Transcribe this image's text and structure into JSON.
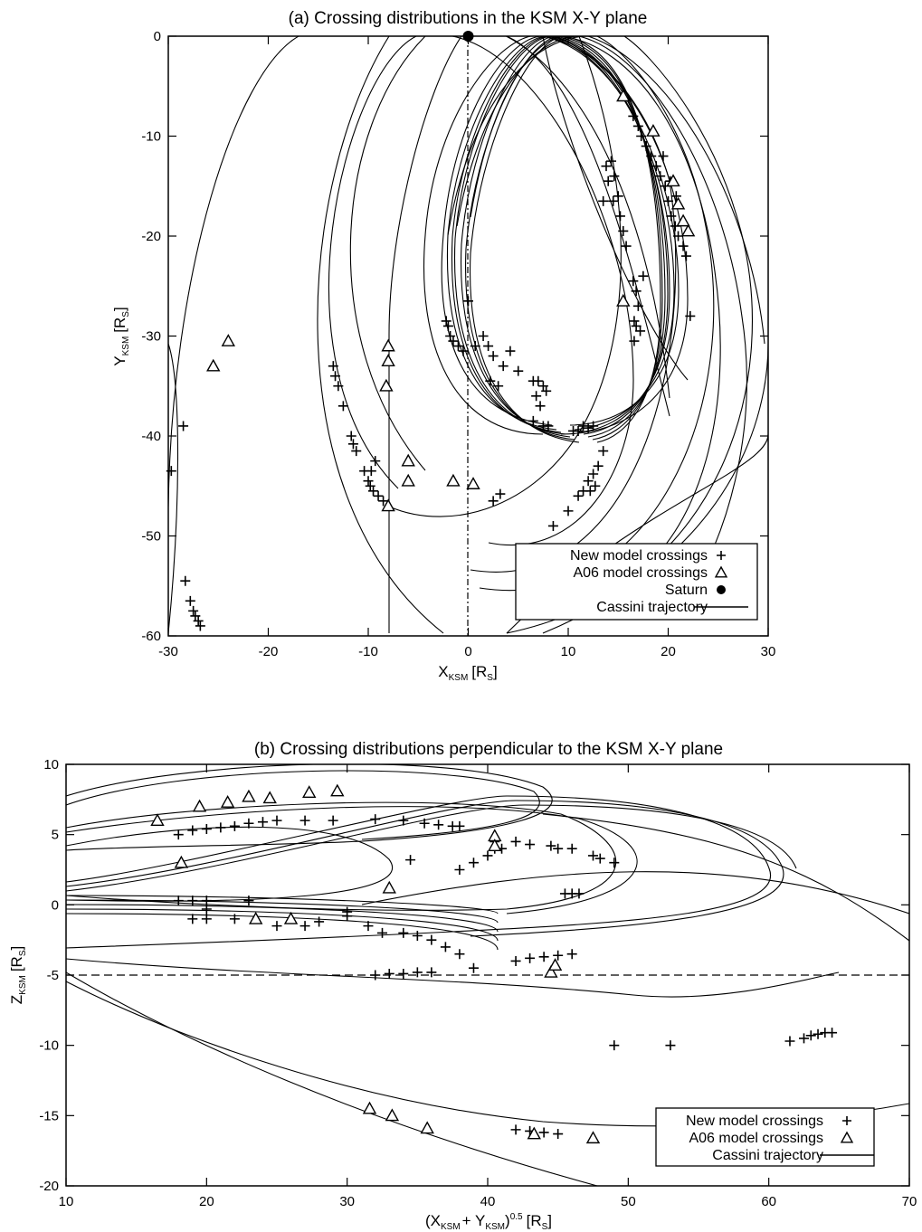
{
  "chart_data": [
    {
      "type": "scatter",
      "title": "(a) Crossing distributions in the KSM X-Y plane",
      "xlabel": {
        "main": "X",
        "sub": "KSM",
        "unit": "[R",
        "unit_sub": "S",
        "unit_end": "]"
      },
      "ylabel": {
        "main": "Y",
        "sub": "KSM",
        "unit": "[R",
        "unit_sub": "S",
        "unit_end": "]"
      },
      "xlim": [
        -30,
        30
      ],
      "ylim": [
        -60,
        0
      ],
      "xticks": [
        -30,
        -20,
        -10,
        0,
        10,
        20,
        30
      ],
      "yticks": [
        0,
        -10,
        -20,
        -30,
        -40,
        -50,
        -60
      ],
      "legend_position": "bottom-right",
      "legend": [
        {
          "label": "New model crossings",
          "marker": "plus"
        },
        {
          "label": "A06 model crossings",
          "marker": "triangle"
        },
        {
          "label": "Saturn",
          "marker": "dot"
        },
        {
          "label": "Cassini trajectory",
          "marker": "line"
        }
      ],
      "series": [
        {
          "name": "New model crossings",
          "marker": "plus",
          "points": [
            [
              -28.5,
              -39
            ],
            [
              -29.7,
              -43.5
            ],
            [
              -28.3,
              -54.5
            ],
            [
              -27.8,
              -56.5
            ],
            [
              -27.5,
              -57.5
            ],
            [
              -27.3,
              -58
            ],
            [
              -27,
              -58.5
            ],
            [
              -26.8,
              -59
            ],
            [
              -13.5,
              -33
            ],
            [
              -13.3,
              -34
            ],
            [
              -13,
              -35
            ],
            [
              -12.5,
              -37
            ],
            [
              -11.7,
              -40
            ],
            [
              -11.5,
              -40.8
            ],
            [
              -11.2,
              -41.5
            ],
            [
              -10.4,
              -43.5
            ],
            [
              -10,
              -44.5
            ],
            [
              -9.8,
              -45
            ],
            [
              -9.5,
              -45.5
            ],
            [
              -9,
              -46
            ],
            [
              -8.5,
              -46.5
            ],
            [
              -9.7,
              -43.5
            ],
            [
              -9.3,
              -42.5
            ],
            [
              -2.2,
              -28.5
            ],
            [
              -2,
              -29
            ],
            [
              -1.8,
              -30
            ],
            [
              -1.5,
              -30.5
            ],
            [
              -1,
              -31
            ],
            [
              -0.5,
              -31.5
            ],
            [
              0,
              -26.5
            ],
            [
              0.7,
              -31
            ],
            [
              1.5,
              -30
            ],
            [
              2,
              -31
            ],
            [
              2.5,
              -32
            ],
            [
              2.2,
              -34.5
            ],
            [
              3.5,
              -33
            ],
            [
              3,
              -35
            ],
            [
              4.2,
              -31.5
            ],
            [
              5,
              -33.5
            ],
            [
              6.5,
              -34.5
            ],
            [
              7,
              -34.5
            ],
            [
              7.5,
              -35
            ],
            [
              6.8,
              -36
            ],
            [
              7.8,
              -35.5
            ],
            [
              7.2,
              -37
            ],
            [
              6.5,
              -38.5
            ],
            [
              7.5,
              -39
            ],
            [
              8,
              -39
            ],
            [
              10.5,
              -39.5
            ],
            [
              11,
              -39.5
            ],
            [
              11.5,
              -39
            ],
            [
              12,
              -39.2
            ],
            [
              12.5,
              -39
            ],
            [
              2.5,
              -46.5
            ],
            [
              3.2,
              -45.8
            ],
            [
              8.5,
              -49
            ],
            [
              10,
              -47.5
            ],
            [
              11,
              -46
            ],
            [
              11.5,
              -45.5
            ],
            [
              12,
              -44.5
            ],
            [
              12.5,
              -43.8
            ],
            [
              13,
              -43
            ],
            [
              13.5,
              -41.5
            ],
            [
              12.2,
              -45.5
            ],
            [
              12.7,
              -45
            ],
            [
              13.5,
              -16.5
            ],
            [
              13.8,
              -13
            ],
            [
              14,
              -14.5
            ],
            [
              14.3,
              -12.5
            ],
            [
              14.6,
              -14
            ],
            [
              15,
              -16
            ],
            [
              15.2,
              -18
            ],
            [
              15.5,
              -19.5
            ],
            [
              15.8,
              -21
            ],
            [
              14.5,
              -16.5
            ],
            [
              16.5,
              -24.5
            ],
            [
              16.8,
              -25.5
            ],
            [
              17,
              -27
            ],
            [
              16.6,
              -28.5
            ],
            [
              16.8,
              -29
            ],
            [
              17.2,
              -29.5
            ],
            [
              16.6,
              -30.5
            ],
            [
              17.5,
              -24
            ],
            [
              16.5,
              -8
            ],
            [
              17,
              -9
            ],
            [
              17.3,
              -10
            ],
            [
              17.8,
              -11
            ],
            [
              18.3,
              -12
            ],
            [
              18.8,
              -13
            ],
            [
              19.2,
              -14
            ],
            [
              19.7,
              -15
            ],
            [
              20,
              -16.5
            ],
            [
              20.3,
              -18
            ],
            [
              20.7,
              -19
            ],
            [
              21,
              -20
            ],
            [
              21.5,
              -21
            ],
            [
              21.8,
              -22
            ],
            [
              22.2,
              -28
            ],
            [
              19.5,
              -12
            ],
            [
              20.2,
              -14.5
            ],
            [
              20.8,
              -16
            ]
          ]
        },
        {
          "name": "A06 model crossings",
          "marker": "triangle",
          "points": [
            [
              -25.5,
              -33
            ],
            [
              -24,
              -30.5
            ],
            [
              -8,
              -31
            ],
            [
              -8,
              -32.5
            ],
            [
              -8.2,
              -35
            ],
            [
              -8,
              -47
            ],
            [
              -6,
              -42.5
            ],
            [
              -6,
              -44.5
            ],
            [
              -1.5,
              -44.5
            ],
            [
              0.5,
              -44.8
            ],
            [
              15.5,
              -6
            ],
            [
              18.5,
              -9.5
            ],
            [
              20.5,
              -14.5
            ],
            [
              21,
              -16.8
            ],
            [
              21.5,
              -18.5
            ],
            [
              22,
              -19.5
            ],
            [
              15.5,
              -26.5
            ]
          ]
        },
        {
          "name": "Saturn",
          "marker": "dot",
          "points": [
            [
              0,
              0
            ]
          ]
        }
      ]
    },
    {
      "type": "scatter",
      "title": "(b) Crossing distributions perpendicular to the KSM X-Y plane",
      "xlabel": {
        "open": "(X",
        "xsub": "KSM",
        "plus": "+ Y",
        "ysub": "KSM",
        "close": ")",
        "exp": "0.5",
        "unit": "[R",
        "unit_sub": "S",
        "unit_end": "]"
      },
      "ylabel": {
        "main": "Z",
        "sub": "KSM",
        "unit": "[R",
        "unit_sub": "S",
        "unit_end": "]"
      },
      "xlim": [
        10,
        70
      ],
      "ylim": [
        -20,
        10
      ],
      "xticks": [
        10,
        20,
        30,
        40,
        50,
        60,
        70
      ],
      "yticks": [
        10,
        5,
        0,
        -5,
        -10,
        -15,
        -20
      ],
      "legend_position": "bottom-right",
      "legend": [
        {
          "label": "New model crossings",
          "marker": "plus"
        },
        {
          "label": "A06 model crossings",
          "marker": "triangle"
        },
        {
          "label": "Cassini trajectory",
          "marker": "line"
        }
      ],
      "series": [
        {
          "name": "New model crossings",
          "marker": "plus",
          "points": [
            [
              18,
              5
            ],
            [
              19,
              5.3
            ],
            [
              20,
              5.4
            ],
            [
              21,
              5.5
            ],
            [
              22,
              5.6
            ],
            [
              23,
              5.8
            ],
            [
              24,
              5.9
            ],
            [
              25,
              6
            ],
            [
              27,
              6
            ],
            [
              29,
              6
            ],
            [
              32,
              6.1
            ],
            [
              34,
              6
            ],
            [
              35.5,
              5.8
            ],
            [
              36.5,
              5.7
            ],
            [
              37.5,
              5.6
            ],
            [
              38,
              5.6
            ],
            [
              40.5,
              4
            ],
            [
              40.5,
              4.5
            ],
            [
              41,
              4
            ],
            [
              42,
              4.5
            ],
            [
              43,
              4.3
            ],
            [
              44.5,
              4.2
            ],
            [
              45,
              4
            ],
            [
              46,
              4
            ],
            [
              47.5,
              3.5
            ],
            [
              48,
              3.3
            ],
            [
              49,
              3
            ],
            [
              18,
              0.3
            ],
            [
              19,
              0.3
            ],
            [
              20,
              0.3
            ],
            [
              23,
              0.3
            ],
            [
              30,
              -0.5
            ],
            [
              31.5,
              -1.5
            ],
            [
              32.5,
              -2
            ],
            [
              34,
              -2
            ],
            [
              35,
              -2.2
            ],
            [
              36,
              -2.5
            ],
            [
              37,
              -3
            ],
            [
              38,
              -3.5
            ],
            [
              34.5,
              3.2
            ],
            [
              38,
              2.5
            ],
            [
              39,
              3
            ],
            [
              40,
              3.5
            ],
            [
              45.5,
              0.8
            ],
            [
              46,
              0.8
            ],
            [
              46.5,
              0.8
            ],
            [
              44,
              -3.7
            ],
            [
              45,
              -3.6
            ],
            [
              46,
              -3.5
            ],
            [
              43,
              -3.8
            ],
            [
              42,
              -4
            ],
            [
              39,
              -4.5
            ],
            [
              36,
              -4.8
            ],
            [
              35,
              -4.8
            ],
            [
              34,
              -4.9
            ],
            [
              33,
              -4.9
            ],
            [
              32,
              -5
            ],
            [
              30,
              -0.8
            ],
            [
              28,
              -1.2
            ],
            [
              27,
              -1.5
            ],
            [
              25,
              -1.5
            ],
            [
              22,
              -1
            ],
            [
              20,
              -1
            ],
            [
              19,
              -1
            ],
            [
              20,
              -0.3
            ],
            [
              49,
              -10
            ],
            [
              53,
              -10
            ],
            [
              61.5,
              -9.7
            ],
            [
              62.5,
              -9.5
            ],
            [
              63,
              -9.3
            ],
            [
              63.5,
              -9.2
            ],
            [
              64,
              -9.1
            ],
            [
              64.5,
              -9.1
            ],
            [
              42,
              -16
            ],
            [
              43,
              -16.1
            ],
            [
              44,
              -16.2
            ],
            [
              45,
              -16.3
            ]
          ]
        },
        {
          "name": "A06 model crossings",
          "marker": "triangle",
          "points": [
            [
              16.5,
              6
            ],
            [
              19.5,
              7
            ],
            [
              21.5,
              7.3
            ],
            [
              23,
              7.7
            ],
            [
              24.5,
              7.6
            ],
            [
              27.3,
              8
            ],
            [
              29.3,
              8.1
            ],
            [
              40.5,
              4.9
            ],
            [
              40.5,
              4.2
            ],
            [
              18.2,
              3
            ],
            [
              33,
              1.2
            ],
            [
              23.5,
              -1
            ],
            [
              26,
              -1
            ],
            [
              44.5,
              -4.8
            ],
            [
              44.8,
              -4.3
            ],
            [
              31.6,
              -14.5
            ],
            [
              33.2,
              -15
            ],
            [
              35.7,
              -15.9
            ],
            [
              43.3,
              -16.3
            ],
            [
              47.5,
              -16.6
            ]
          ]
        }
      ]
    }
  ]
}
